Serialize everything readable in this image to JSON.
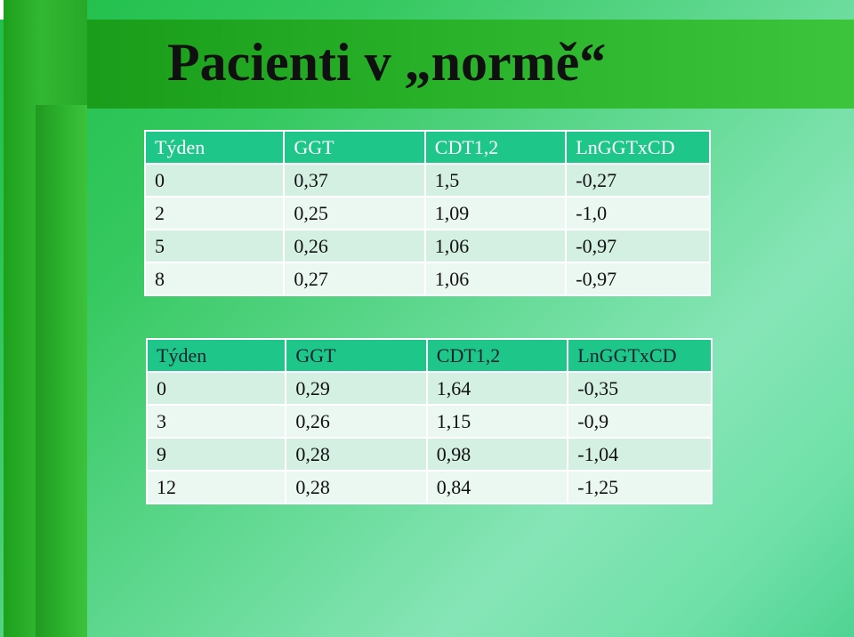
{
  "slide": {
    "title": "Pacienti v „normě“"
  },
  "tables": [
    {
      "headers": [
        "Týden",
        "GGT",
        "CDT1,2",
        "LnGGTxCD"
      ],
      "rows": [
        [
          "0",
          "0,37",
          "1,5",
          "-0,27"
        ],
        [
          "2",
          "0,25",
          "1,09",
          "-1,0"
        ],
        [
          "5",
          "0,26",
          "1,06",
          "-0,97"
        ],
        [
          "8",
          "0,27",
          "1,06",
          "-0,97"
        ]
      ]
    },
    {
      "headers": [
        "Týden",
        "GGT",
        "CDT1,2",
        "LnGGTxCD"
      ],
      "rows": [
        [
          "0",
          "0,29",
          "1,64",
          "-0,35"
        ],
        [
          "3",
          "0,26",
          "1,15",
          "-0,9"
        ],
        [
          "9",
          "0,28",
          "0,98",
          "-1,04"
        ],
        [
          "12",
          "0,28",
          "0,84",
          "-1,25"
        ]
      ]
    }
  ],
  "colors": {
    "header_bg": "#1ec68a",
    "row_odd": "#d4f0e3",
    "row_even": "#eaf8f1",
    "band_green": "#2cb52c"
  }
}
